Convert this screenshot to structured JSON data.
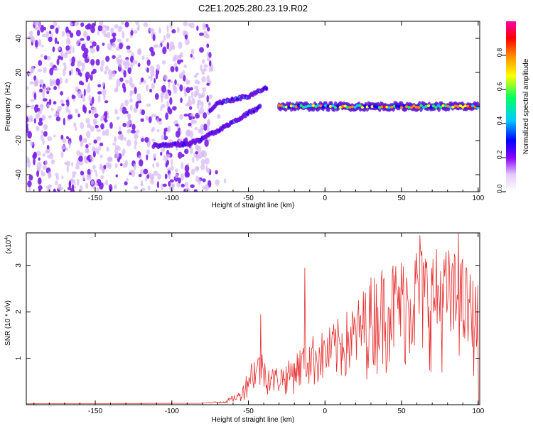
{
  "title": "C2E1.2025.280.23.19.R02",
  "chart_data": [
    {
      "type": "heatmap",
      "name": "spectrogram",
      "xlabel": "Height of straight line (km)",
      "ylabel": "Frequency (Hz)",
      "xlim": [
        -195,
        101
      ],
      "ylim": [
        -50,
        50
      ],
      "xticks": [
        -150,
        -100,
        -50,
        0,
        50,
        100
      ],
      "yticks": [
        -40,
        -20,
        0,
        20,
        40
      ],
      "colorbar": {
        "label": "Normalized spectral amplitude",
        "range": [
          0,
          1
        ],
        "ticks": [
          0.0,
          0.2,
          0.4,
          0.6,
          0.8
        ],
        "colors": [
          "#ffffff",
          "#e6ccff",
          "#8800ff",
          "#0000ff",
          "#00ccff",
          "#00ff66",
          "#ffff00",
          "#ff8800",
          "#ff0000",
          "#ff00aa"
        ]
      },
      "features": {
        "noise_region_x": [
          -195,
          -75
        ],
        "lower_track": [
          [
            -112,
            -23
          ],
          [
            -90,
            -22
          ],
          [
            -80,
            -19
          ],
          [
            -70,
            -14
          ],
          [
            -60,
            -9
          ],
          [
            -50,
            -4
          ],
          [
            -42,
            0
          ]
        ],
        "upper_track": [
          [
            -75,
            -3
          ],
          [
            -70,
            2
          ],
          [
            -60,
            4
          ],
          [
            -50,
            6
          ],
          [
            -45,
            8
          ],
          [
            -38,
            11
          ]
        ],
        "center_line": {
          "x": [
            -30,
            100
          ],
          "frequency_hz": 0
        }
      }
    },
    {
      "type": "line",
      "name": "snr",
      "xlabel": "Height of straight line (km)",
      "ylabel": "SNR (10 * v/v)",
      "y_scale_label": "(x10",
      "y_scale_exp": "4",
      "y_scale_close": ")",
      "xlim": [
        -195,
        101
      ],
      "ylim": [
        0,
        3.7
      ],
      "xticks": [
        -150,
        -100,
        -50,
        0,
        50,
        100
      ],
      "yticks": [
        1,
        2,
        3
      ],
      "color": "#e83030",
      "envelope": [
        [
          -195,
          0.02
        ],
        [
          -80,
          0.03
        ],
        [
          -65,
          0.1
        ],
        [
          -55,
          0.3
        ],
        [
          -48,
          1.0
        ],
        [
          -42,
          1.2
        ],
        [
          -35,
          0.8
        ],
        [
          -25,
          0.9
        ],
        [
          -15,
          1.3
        ],
        [
          -10,
          1.5
        ],
        [
          0,
          1.6
        ],
        [
          10,
          1.9
        ],
        [
          20,
          2.2
        ],
        [
          30,
          2.8
        ],
        [
          40,
          3.1
        ],
        [
          50,
          3.2
        ],
        [
          60,
          3.5
        ],
        [
          70,
          3.4
        ],
        [
          80,
          3.4
        ],
        [
          90,
          3.2
        ],
        [
          100,
          2.6
        ]
      ],
      "spikes": [
        [
          -42,
          1.95
        ],
        [
          -13,
          2.95
        ],
        [
          62,
          3.65
        ],
        [
          87,
          3.7
        ]
      ]
    }
  ]
}
